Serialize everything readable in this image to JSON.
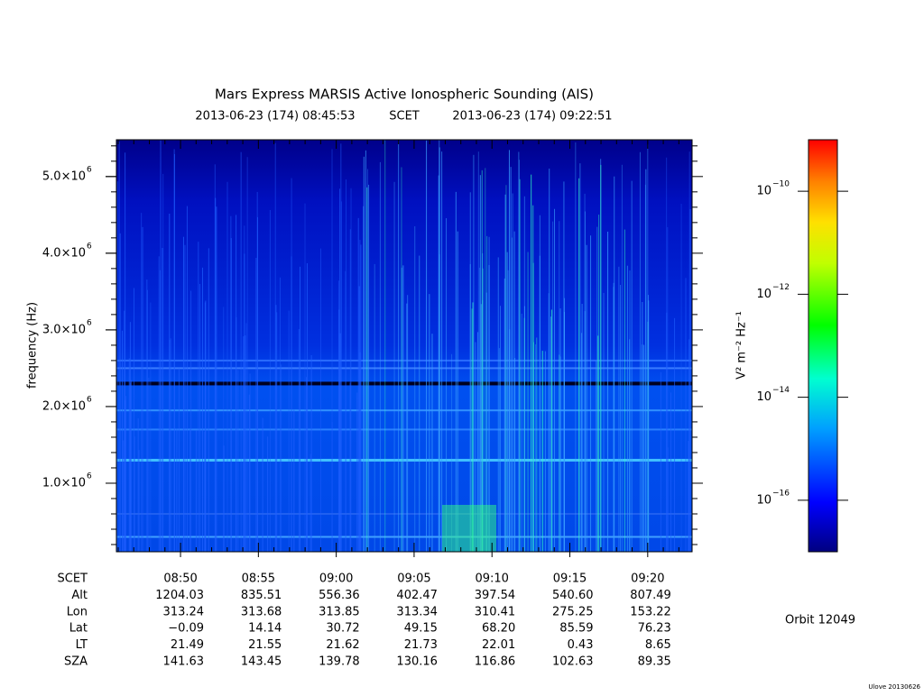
{
  "title": "Mars Express MARSIS Active Ionospheric Sounding (AIS)",
  "subtitle": {
    "start": "2013-06-23 (174) 08:45:53",
    "mid": "SCET",
    "end": "2013-06-23 (174) 09:22:51"
  },
  "y_axis": {
    "label": "frequency (Hz)",
    "lim": [
      106000,
      5480000
    ],
    "ticks": [
      {
        "value": 1000000,
        "mantissa": "1.0×10",
        "exponent": "6"
      },
      {
        "value": 2000000,
        "mantissa": "2.0×10",
        "exponent": "6"
      },
      {
        "value": 3000000,
        "mantissa": "3.0×10",
        "exponent": "6"
      },
      {
        "value": 4000000,
        "mantissa": "4.0×10",
        "exponent": "6"
      },
      {
        "value": 5000000,
        "mantissa": "5.0×10",
        "exponent": "6"
      }
    ]
  },
  "ephemeris": {
    "labels": [
      "SCET",
      "Alt",
      "Lon",
      "Lat",
      "LT",
      "SZA"
    ],
    "rows": [
      [
        "08:50",
        "08:55",
        "09:00",
        "09:05",
        "09:10",
        "09:15",
        "09:20"
      ],
      [
        "1204.03",
        "835.51",
        "556.36",
        "402.47",
        "397.54",
        "540.60",
        "807.49"
      ],
      [
        "313.24",
        "313.68",
        "313.85",
        "313.34",
        "310.41",
        "275.25",
        "153.22"
      ],
      [
        "−0.09",
        "14.14",
        "30.72",
        "49.15",
        "68.20",
        "85.59",
        "76.23"
      ],
      [
        "21.49",
        "21.55",
        "21.62",
        "21.73",
        "22.01",
        "0.43",
        "8.65"
      ],
      [
        "141.63",
        "143.45",
        "139.78",
        "130.16",
        "116.86",
        "102.63",
        "89.35"
      ]
    ]
  },
  "colorbar": {
    "label": "V² m⁻² Hz⁻¹",
    "lim": [
      -17.0,
      -9.0
    ],
    "ticks": [
      {
        "value": -10,
        "base": "10",
        "exponent": "−10"
      },
      {
        "value": -12,
        "base": "10",
        "exponent": "−12"
      },
      {
        "value": -14,
        "base": "10",
        "exponent": "−14"
      },
      {
        "value": -16,
        "base": "10",
        "exponent": "−16"
      }
    ]
  },
  "orbit": "Orbit 12049",
  "footer": "Ulove 20130626"
}
